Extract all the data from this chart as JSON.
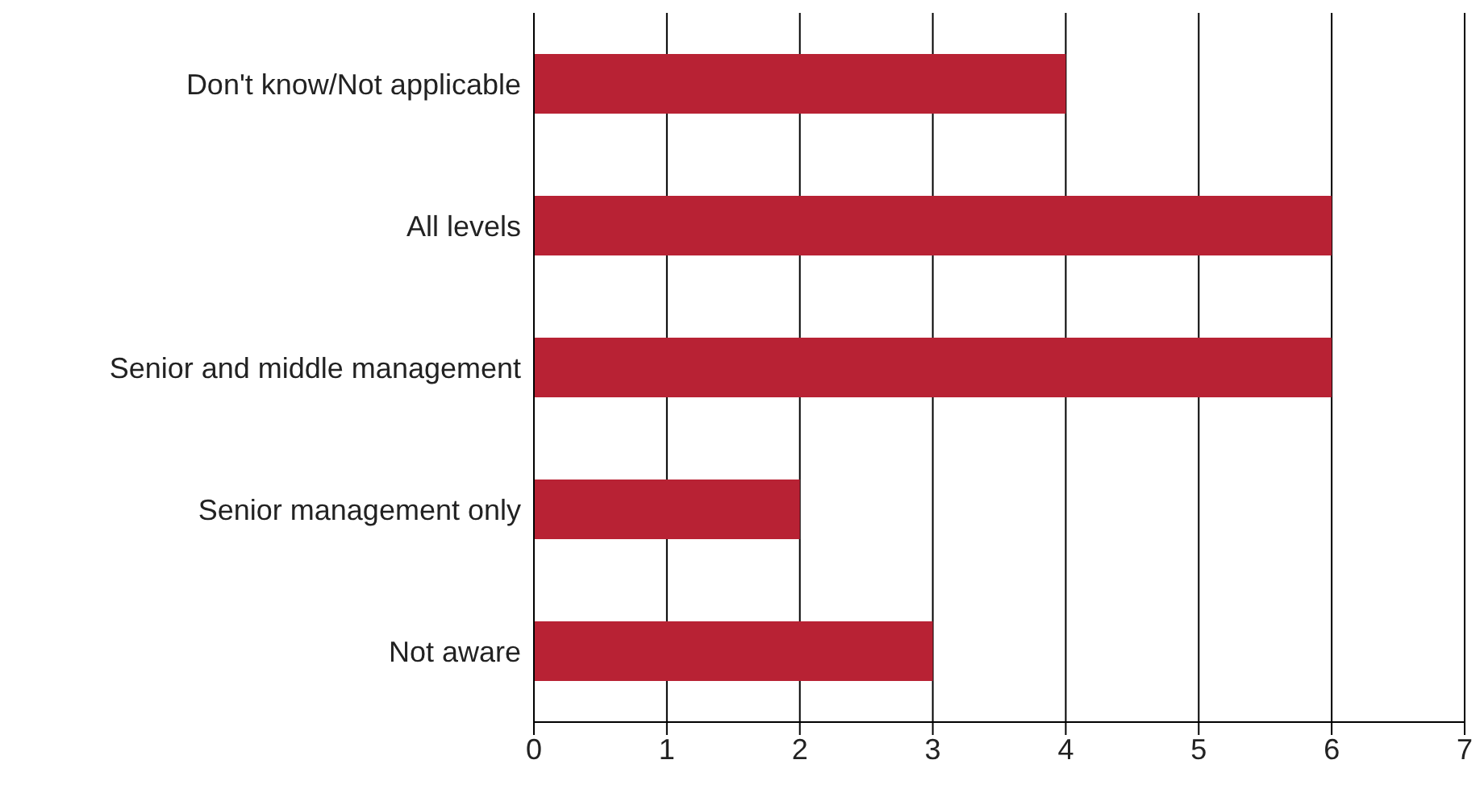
{
  "chart_data": {
    "type": "bar",
    "orientation": "horizontal",
    "categories": [
      "Don't know/Not applicable",
      "All levels",
      "Senior and middle management",
      "Senior management only",
      "Not aware"
    ],
    "values": [
      4,
      6,
      6,
      2,
      3
    ],
    "color": "#b82234",
    "xlim": [
      0,
      7
    ],
    "xticks": [
      0,
      1,
      2,
      3,
      4,
      5,
      6,
      7
    ],
    "grid": "x",
    "legend": false
  }
}
